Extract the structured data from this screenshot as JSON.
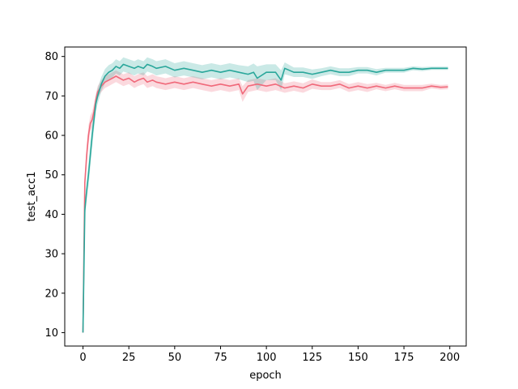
{
  "chart_data": {
    "type": "line",
    "title": "",
    "xlabel": "epoch",
    "ylabel": "test_acc1",
    "xlim": [
      -9.95,
      208.95
    ],
    "ylim": [
      6.6,
      82.4
    ],
    "xticks": [
      0,
      25,
      50,
      75,
      100,
      125,
      150,
      175,
      200
    ],
    "yticks": [
      10,
      20,
      30,
      40,
      50,
      60,
      70,
      80
    ],
    "grid": false,
    "legend": "none",
    "series": [
      {
        "color": "#f0697a",
        "x": [
          0,
          1,
          2,
          3,
          4,
          5,
          6,
          7,
          8,
          10,
          12,
          14,
          16,
          18,
          20,
          22,
          25,
          28,
          30,
          33,
          35,
          38,
          40,
          45,
          50,
          55,
          60,
          65,
          70,
          75,
          80,
          85,
          87,
          90,
          95,
          100,
          105,
          110,
          115,
          120,
          125,
          130,
          135,
          140,
          145,
          150,
          155,
          160,
          165,
          170,
          175,
          180,
          185,
          190,
          195,
          199
        ],
        "y": [
          10,
          48,
          55,
          60,
          63,
          64,
          66,
          69,
          71,
          72.5,
          73.5,
          74,
          74.5,
          75,
          74.5,
          74,
          74.5,
          73.5,
          74,
          74.5,
          73.5,
          74,
          73.5,
          73,
          73.5,
          73,
          73.5,
          73,
          72.5,
          73,
          72.5,
          73,
          70.5,
          72.5,
          73,
          72.5,
          73,
          72,
          72.5,
          72,
          73,
          72.5,
          72.5,
          73,
          72,
          72.5,
          72,
          72.5,
          72,
          72.5,
          72,
          72,
          72,
          72.5,
          72.2,
          72.3
        ],
        "band": [
          0.5,
          2,
          2.5,
          2.5,
          2,
          2,
          2,
          1.5,
          1.5,
          1.5,
          1.5,
          1.5,
          1.5,
          1.5,
          1.5,
          1.5,
          1.5,
          1.5,
          1.5,
          1.5,
          1.5,
          1.5,
          1.5,
          1.5,
          1.5,
          1.5,
          1.5,
          1.5,
          1.5,
          1.5,
          1.5,
          1.5,
          2,
          1.5,
          1.5,
          1.5,
          1.5,
          1.2,
          1.2,
          1.2,
          1.2,
          1,
          1,
          1,
          1,
          1,
          1,
          0.8,
          0.8,
          0.8,
          0.8,
          0.8,
          0.8,
          0.6,
          0.6,
          0.6
        ]
      },
      {
        "color": "#2aa79b",
        "x": [
          0,
          1,
          2,
          3,
          4,
          5,
          6,
          7,
          8,
          10,
          12,
          14,
          16,
          18,
          20,
          22,
          25,
          28,
          30,
          33,
          35,
          38,
          40,
          45,
          50,
          55,
          60,
          65,
          70,
          75,
          80,
          85,
          90,
          93,
          95,
          100,
          105,
          108,
          110,
          115,
          120,
          125,
          130,
          135,
          140,
          145,
          150,
          155,
          160,
          165,
          170,
          175,
          180,
          185,
          190,
          195,
          199
        ],
        "y": [
          10,
          41,
          46,
          50,
          55,
          60,
          64,
          68,
          70,
          73,
          75,
          76,
          76.5,
          77.5,
          77,
          78,
          77.5,
          77,
          77.5,
          77,
          78,
          77.5,
          77,
          77.5,
          76.5,
          77,
          76.5,
          76,
          76.5,
          76,
          76.5,
          76,
          75.5,
          76,
          74.5,
          76,
          76,
          74,
          77,
          76,
          76,
          75.5,
          76,
          76.5,
          76,
          76,
          76.5,
          76.5,
          76,
          76.5,
          76.5,
          76.5,
          77,
          76.8,
          77,
          77,
          77
        ],
        "band": [
          0.5,
          2,
          2.5,
          3,
          3,
          3,
          2.5,
          2,
          2,
          1.8,
          1.8,
          1.8,
          1.8,
          1.8,
          1.8,
          1.8,
          1.8,
          1.8,
          1.8,
          1.8,
          1.8,
          1.8,
          1.8,
          1.8,
          1.8,
          1.8,
          1.8,
          1.8,
          1.8,
          1.8,
          1.8,
          1.8,
          2,
          2.2,
          3,
          2,
          2,
          2.5,
          1.5,
          1.2,
          1.2,
          1.2,
          1,
          1,
          1,
          1,
          0.8,
          0.8,
          0.8,
          0.6,
          0.6,
          0.6,
          0.5,
          0.5,
          0.4,
          0.4,
          0.4
        ]
      }
    ]
  }
}
